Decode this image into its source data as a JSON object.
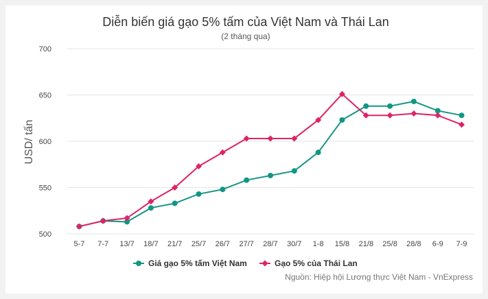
{
  "chart_data": {
    "type": "line",
    "title": "Diễn biến giá gạo 5% tấm của Việt Nam và Thái Lan",
    "subtitle": "(2 tháng qua)",
    "xlabel": "",
    "ylabel": "USD/ tấn",
    "categories": [
      "5-7",
      "7-7",
      "13/7",
      "18/7",
      "21/7",
      "25/7",
      "26/7",
      "27/7",
      "28/7",
      "30/7",
      "1-8",
      "15/8",
      "21/8",
      "25/8",
      "28/8",
      "6-9",
      "7-9"
    ],
    "yticks": [
      500,
      550,
      600,
      650,
      700
    ],
    "ylim": [
      500,
      700
    ],
    "grid": true,
    "legend_position": "bottom",
    "series": [
      {
        "name": "Giá gạo 5% tấm Việt Nam",
        "color": "#129684",
        "marker": "circle",
        "values": [
          508,
          514,
          513,
          528,
          533,
          543,
          548,
          558,
          563,
          568,
          588,
          623,
          638,
          638,
          643,
          633,
          628
        ]
      },
      {
        "name": "Gạo 5% của Thái Lan",
        "color": "#de2366",
        "marker": "diamond",
        "values": [
          508,
          514,
          517,
          535,
          550,
          573,
          588,
          603,
          603,
          603,
          623,
          651,
          628,
          628,
          630,
          628,
          618
        ]
      }
    ],
    "source": "Nguồn: Hiệp hội Lương thực Việt Nam - VnExpress"
  }
}
